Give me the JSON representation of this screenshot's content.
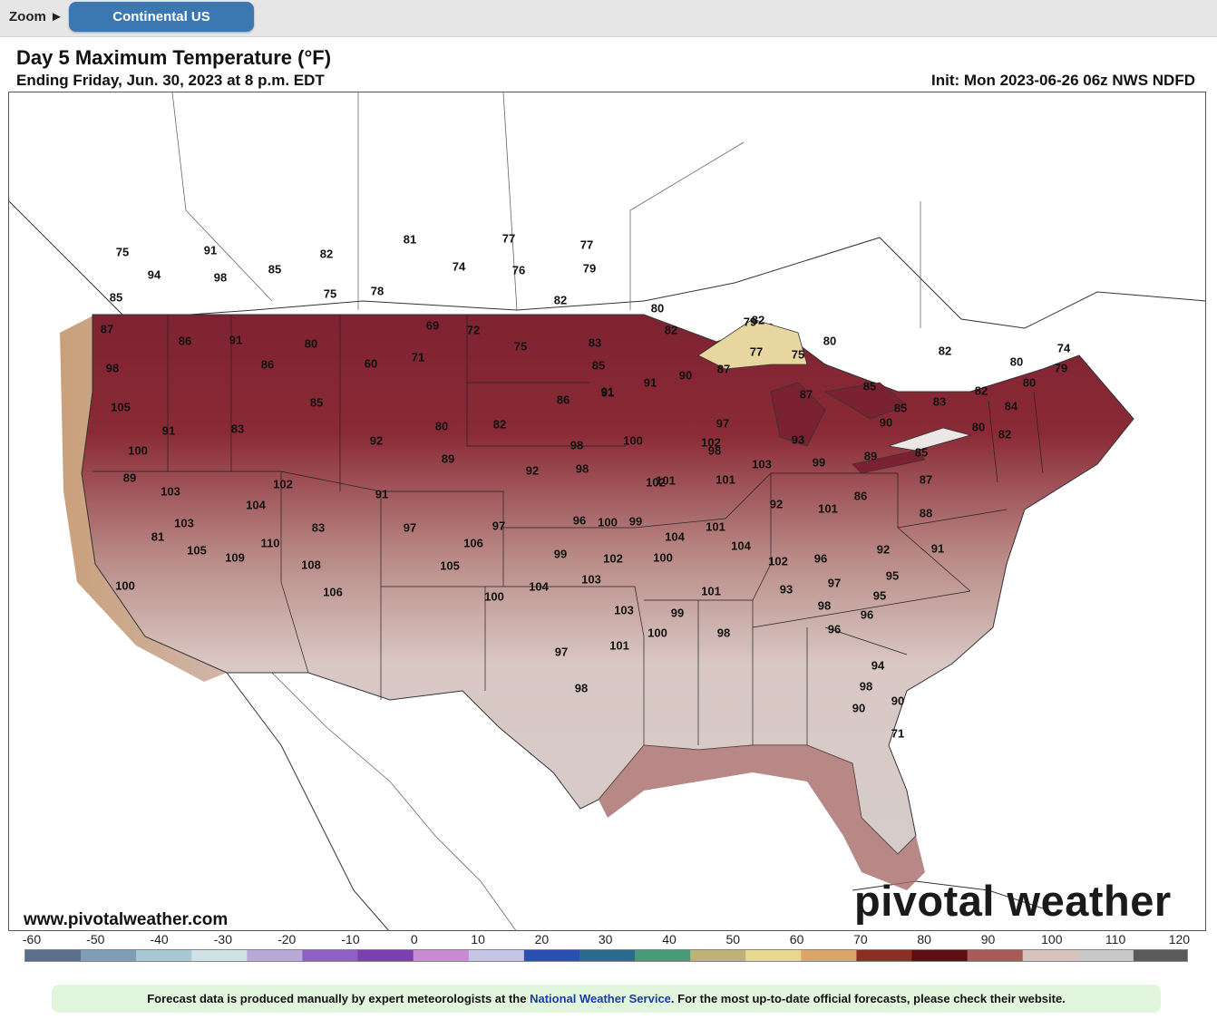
{
  "toolbar": {
    "zoom_label": "Zoom ►",
    "region_button": "Continental US"
  },
  "header": {
    "title": "Day 5 Maximum Temperature (°F)",
    "subtitle": "Ending Friday, Jun. 30, 2023 at 8 p.m. EDT",
    "init": "Init: Mon 2023-06-26 06z NWS NDFD"
  },
  "map": {
    "website": "www.pivotalweather.com",
    "logo": "pivotal weather",
    "temperature_labels": [
      "75",
      "91",
      "98",
      "85",
      "94",
      "82",
      "81",
      "77",
      "77",
      "79",
      "76",
      "74",
      "85",
      "75",
      "78",
      "87",
      "86",
      "91",
      "80",
      "69",
      "72",
      "98",
      "86",
      "60",
      "71",
      "75",
      "83",
      "82",
      "80",
      "82",
      "85",
      "91",
      "90",
      "87",
      "79",
      "82",
      "77",
      "75",
      "80",
      "85",
      "82",
      "80",
      "80",
      "79",
      "74",
      "82",
      "83",
      "84",
      "85",
      "82",
      "80",
      "87",
      "91",
      "86",
      "91",
      "105",
      "83",
      "91",
      "85",
      "92",
      "80",
      "82",
      "100",
      "103",
      "89",
      "89",
      "102",
      "91",
      "104",
      "103",
      "110",
      "83",
      "97",
      "109",
      "108",
      "106",
      "92",
      "98",
      "98",
      "100",
      "102",
      "97",
      "98",
      "101",
      "103",
      "99",
      "92",
      "101",
      "93",
      "89",
      "85",
      "87",
      "90",
      "86",
      "88",
      "92",
      "95",
      "91",
      "101",
      "104",
      "102",
      "96",
      "97",
      "95",
      "93",
      "100",
      "104",
      "102",
      "99",
      "105",
      "106",
      "97",
      "96",
      "100",
      "99",
      "101",
      "102",
      "103",
      "104",
      "100",
      "103",
      "101",
      "98",
      "99",
      "100",
      "101",
      "97",
      "98",
      "96",
      "98",
      "96",
      "98",
      "94",
      "90",
      "90",
      "71",
      "81",
      "105",
      "100"
    ]
  },
  "colorscale": {
    "ticks": [
      "-60",
      "-50",
      "-40",
      "-30",
      "-20",
      "-10",
      "0",
      "10",
      "20",
      "30",
      "40",
      "50",
      "60",
      "70",
      "80",
      "90",
      "100",
      "110",
      "120"
    ],
    "colors": [
      "#5a6f8a",
      "#7f9eb5",
      "#a9c8d6",
      "#cfe3e6",
      "#b9a9d6",
      "#8e5fc4",
      "#7a3fb0",
      "#c98bd1",
      "#c7c5e6",
      "#2a4fb0",
      "#2a6a8c",
      "#4a9a7a",
      "#bdb27a",
      "#e8d790",
      "#d9a66a",
      "#8a2f24",
      "#5a0f10",
      "#a85a58",
      "#d8c2bd",
      "#c8c8c8",
      "#5a5a5a"
    ]
  },
  "footer": {
    "notice_before": "Forecast data is produced manually by expert meteorologists at the ",
    "notice_link": "National Weather Service",
    "notice_after": ". For the most up-to-date official forecasts, please check their website."
  }
}
